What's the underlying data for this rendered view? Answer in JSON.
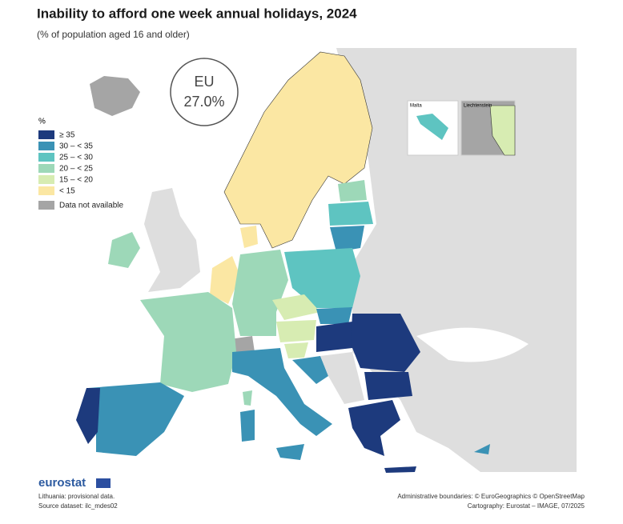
{
  "header": {
    "title": "Inability to afford one week annual holidays, 2024",
    "subtitle": "(% of population aged 16 and older)"
  },
  "eu_box": {
    "label": "EU",
    "value": "27.0%"
  },
  "legend": {
    "title": "%",
    "items": [
      {
        "label": "≥ 35",
        "color": "#1d3a7d"
      },
      {
        "label": "30 – < 35",
        "color": "#3a92b5"
      },
      {
        "label": "25 – < 30",
        "color": "#5ec4c1"
      },
      {
        "label": "20 – < 25",
        "color": "#9dd8b8"
      },
      {
        "label": "15 – < 20",
        "color": "#d7ecb2"
      },
      {
        "label": "< 15",
        "color": "#fbe7a3"
      },
      {
        "label": "Data not available",
        "color": "#a5a5a5"
      }
    ]
  },
  "insets": {
    "malta": "Malta",
    "liechtenstein": "Liechtenstein"
  },
  "footer": {
    "logo": "eurostat",
    "note": "Lithuania: provisional data.",
    "source": "Source dataset: ilc_mdes02",
    "boundaries": "Administrative boundaries: © EuroGeographics © OpenStreetMap",
    "cartography": "Cartography: Eurostat – IMAGE, 07/2025"
  }
}
